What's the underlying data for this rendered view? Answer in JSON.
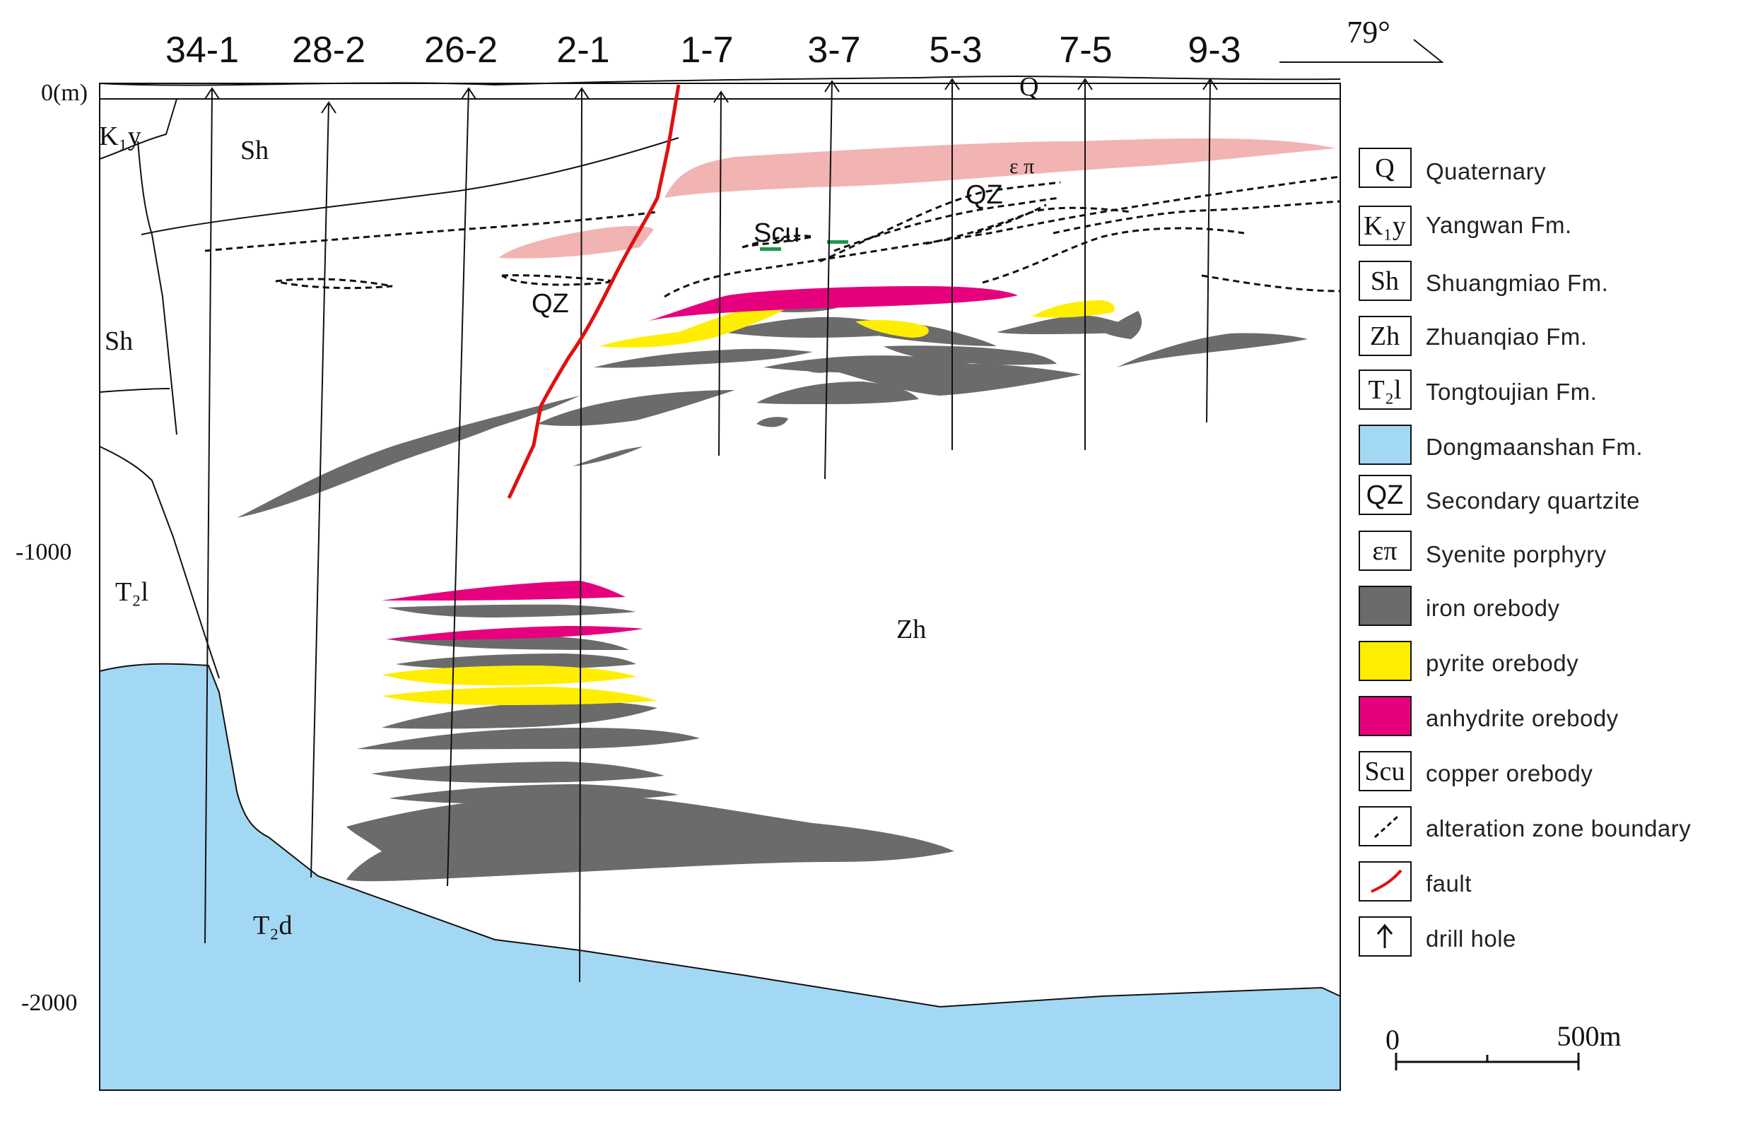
{
  "drill_holes": [
    "34-1",
    "28-2",
    "26-2",
    "2-1",
    "1-7",
    "3-7",
    "5-3",
    "7-5",
    "9-3"
  ],
  "orientation": "79°",
  "depth_labels": [
    "0(m)",
    "-1000",
    "-2000"
  ],
  "units": {
    "k1y": "K₁y",
    "sh_top": "Sh",
    "sh_left": "Sh",
    "t2l": "T₂l",
    "t2d": "T₂d",
    "zh": "Zh",
    "q": "Q",
    "qz_upper": "QZ",
    "qz_lower": "QZ",
    "scu": "Scu",
    "ep": "ε π"
  },
  "legend": [
    {
      "symbol": "Q",
      "label": "Quaternary"
    },
    {
      "symbol": "K₁y",
      "label": "Yangwan Fm."
    },
    {
      "symbol": "Sh",
      "label": "Shuangmiao Fm."
    },
    {
      "symbol": "Zh",
      "label": "Zhuanqiao Fm."
    },
    {
      "symbol": "T₂l",
      "label": "Tongtoujian Fm."
    },
    {
      "symbol": "",
      "label": "Dongmaanshan Fm.",
      "color": "#a3d8f4"
    },
    {
      "symbol": "QZ",
      "label": "Secondary quartzite"
    },
    {
      "symbol": "επ",
      "label": "Syenite porphyry"
    },
    {
      "symbol": "",
      "label": "iron orebody",
      "color": "#6b6b6b"
    },
    {
      "symbol": "",
      "label": "pyrite orebody",
      "color": "#ffee00"
    },
    {
      "symbol": "",
      "label": "anhydrite orebody",
      "color": "#e6007e"
    },
    {
      "symbol": "Scu",
      "label": "copper orebody"
    },
    {
      "symbol": "",
      "label": "alteration zone boundary",
      "icon": "dashed-line-icon"
    },
    {
      "symbol": "",
      "label": "fault",
      "icon": "fault-line-icon"
    },
    {
      "symbol": "",
      "label": "drill hole",
      "icon": "arrow-up-icon"
    }
  ],
  "scale": {
    "start": "0",
    "end": "500m"
  },
  "colors": {
    "dongmaanshan": "#a3d8f4",
    "syenite": "#f2b3b3",
    "iron": "#6b6b6b",
    "pyrite": "#ffee00",
    "anhydrite": "#e6007e",
    "copper": "#1a9a4a",
    "fault": "#e01010"
  }
}
